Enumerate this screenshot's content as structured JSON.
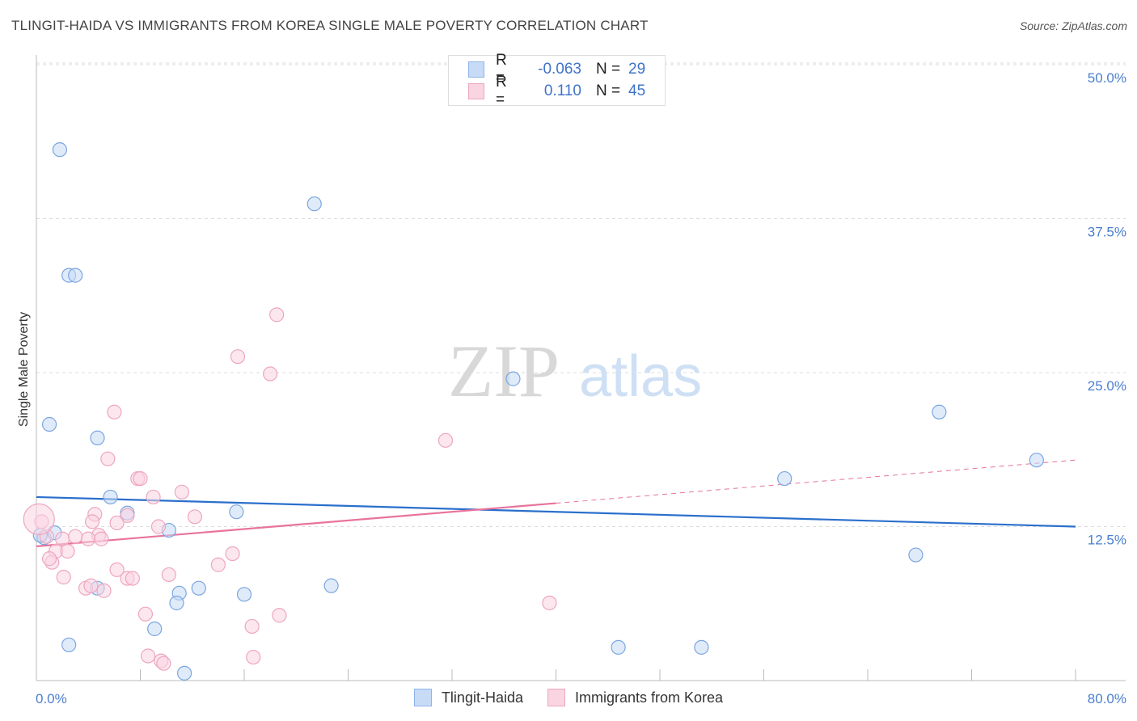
{
  "header": {
    "title": "TLINGIT-HAIDA VS IMMIGRANTS FROM KOREA SINGLE MALE POVERTY CORRELATION CHART",
    "source": "Source: ZipAtlas.com"
  },
  "watermark": {
    "zip": "ZIP",
    "atlas": "atlas"
  },
  "legend": {
    "rows": [
      {
        "r_label": "R =",
        "r_value": "-0.063",
        "n_label": "N =",
        "n_value": "29",
        "color": "#8db4ea",
        "fill": "#c7dbf6"
      },
      {
        "r_label": "R =",
        "r_value": "0.110",
        "n_label": "N =",
        "n_value": "45",
        "color": "#eea6bf",
        "fill": "#f9d4e1"
      }
    ]
  },
  "bottom_legend": {
    "items": [
      {
        "label": "Tlingit-Haida",
        "color": "#8db4ea",
        "fill": "#c7dbf6"
      },
      {
        "label": "Immigrants from Korea",
        "color": "#eea6bf",
        "fill": "#f9d4e1"
      }
    ]
  },
  "chart_data": {
    "type": "scatter",
    "title": "TLINGIT-HAIDA VS IMMIGRANTS FROM KOREA SINGLE MALE POVERTY CORRELATION CHART",
    "xlabel": "",
    "ylabel": "Single Male Poverty",
    "xlim": [
      0,
      80
    ],
    "ylim": [
      0,
      50
    ],
    "x_tick_labels": [
      "0.0%",
      "80.0%"
    ],
    "y_ticks": [
      12.5,
      25.0,
      37.5,
      50.0
    ],
    "y_tick_labels": [
      "12.5%",
      "25.0%",
      "37.5%",
      "50.0%"
    ],
    "series": [
      {
        "name": "Tlingit-Haida",
        "stroke": "#7ba6e0",
        "fill": "#c7dbf6",
        "trend_color": "#2a6fcc",
        "trend": {
          "x0": 0,
          "y0": 14.9,
          "x1": 80,
          "y1": 12.5,
          "dashed_from": null
        },
        "points": [
          [
            1.8,
            43.1
          ],
          [
            21.4,
            38.7
          ],
          [
            2.5,
            32.9
          ],
          [
            3.0,
            32.9
          ],
          [
            36.7,
            24.5
          ],
          [
            1.0,
            20.8
          ],
          [
            4.7,
            19.7
          ],
          [
            69.5,
            21.8
          ],
          [
            77.0,
            17.9
          ],
          [
            57.6,
            16.4
          ],
          [
            5.7,
            14.9
          ],
          [
            7.0,
            13.6
          ],
          [
            15.4,
            13.7
          ],
          [
            10.2,
            12.2
          ],
          [
            0.6,
            11.6
          ],
          [
            1.4,
            12.0
          ],
          [
            0.3,
            11.8
          ],
          [
            67.7,
            10.2
          ],
          [
            4.7,
            7.5
          ],
          [
            11.0,
            7.1
          ],
          [
            12.5,
            7.5
          ],
          [
            16.0,
            7.0
          ],
          [
            22.7,
            7.7
          ],
          [
            10.8,
            6.3
          ],
          [
            9.1,
            4.2
          ],
          [
            2.5,
            2.9
          ],
          [
            44.8,
            2.7
          ],
          [
            51.2,
            2.7
          ],
          [
            11.4,
            0.6
          ]
        ]
      },
      {
        "name": "Immigrants from Korea",
        "stroke": "#eea6bf",
        "fill": "#f9d4e1",
        "trend_color": "#e8739b",
        "trend": {
          "x0": 0,
          "y0": 10.9,
          "x1": 80,
          "y1": 17.9,
          "dashed_from": 40
        },
        "points": [
          [
            18.5,
            29.7
          ],
          [
            15.5,
            26.3
          ],
          [
            18.0,
            24.9
          ],
          [
            6.0,
            21.8
          ],
          [
            31.5,
            19.5
          ],
          [
            5.5,
            18.0
          ],
          [
            7.8,
            16.4
          ],
          [
            8.0,
            16.4
          ],
          [
            11.2,
            15.3
          ],
          [
            9.0,
            14.9
          ],
          [
            4.5,
            13.5
          ],
          [
            7.0,
            13.4
          ],
          [
            12.2,
            13.3
          ],
          [
            4.3,
            12.9
          ],
          [
            6.2,
            12.8
          ],
          [
            9.4,
            12.5
          ],
          [
            0.4,
            12.9
          ],
          [
            4.8,
            11.8
          ],
          [
            2.0,
            11.5
          ],
          [
            3.0,
            11.7
          ],
          [
            4.0,
            11.5
          ],
          [
            5.0,
            11.5
          ],
          [
            0.8,
            11.7
          ],
          [
            1.5,
            10.5
          ],
          [
            2.4,
            10.5
          ],
          [
            15.1,
            10.3
          ],
          [
            1.2,
            9.6
          ],
          [
            1.0,
            9.9
          ],
          [
            14.0,
            9.4
          ],
          [
            6.2,
            9.0
          ],
          [
            10.2,
            8.6
          ],
          [
            7.0,
            8.3
          ],
          [
            7.4,
            8.3
          ],
          [
            2.1,
            8.4
          ],
          [
            3.8,
            7.5
          ],
          [
            4.2,
            7.7
          ],
          [
            5.2,
            7.3
          ],
          [
            39.5,
            6.3
          ],
          [
            8.4,
            5.4
          ],
          [
            18.7,
            5.3
          ],
          [
            16.6,
            4.4
          ],
          [
            8.6,
            2.0
          ],
          [
            9.6,
            1.6
          ],
          [
            9.8,
            1.4
          ],
          [
            16.7,
            1.9
          ]
        ]
      }
    ]
  }
}
